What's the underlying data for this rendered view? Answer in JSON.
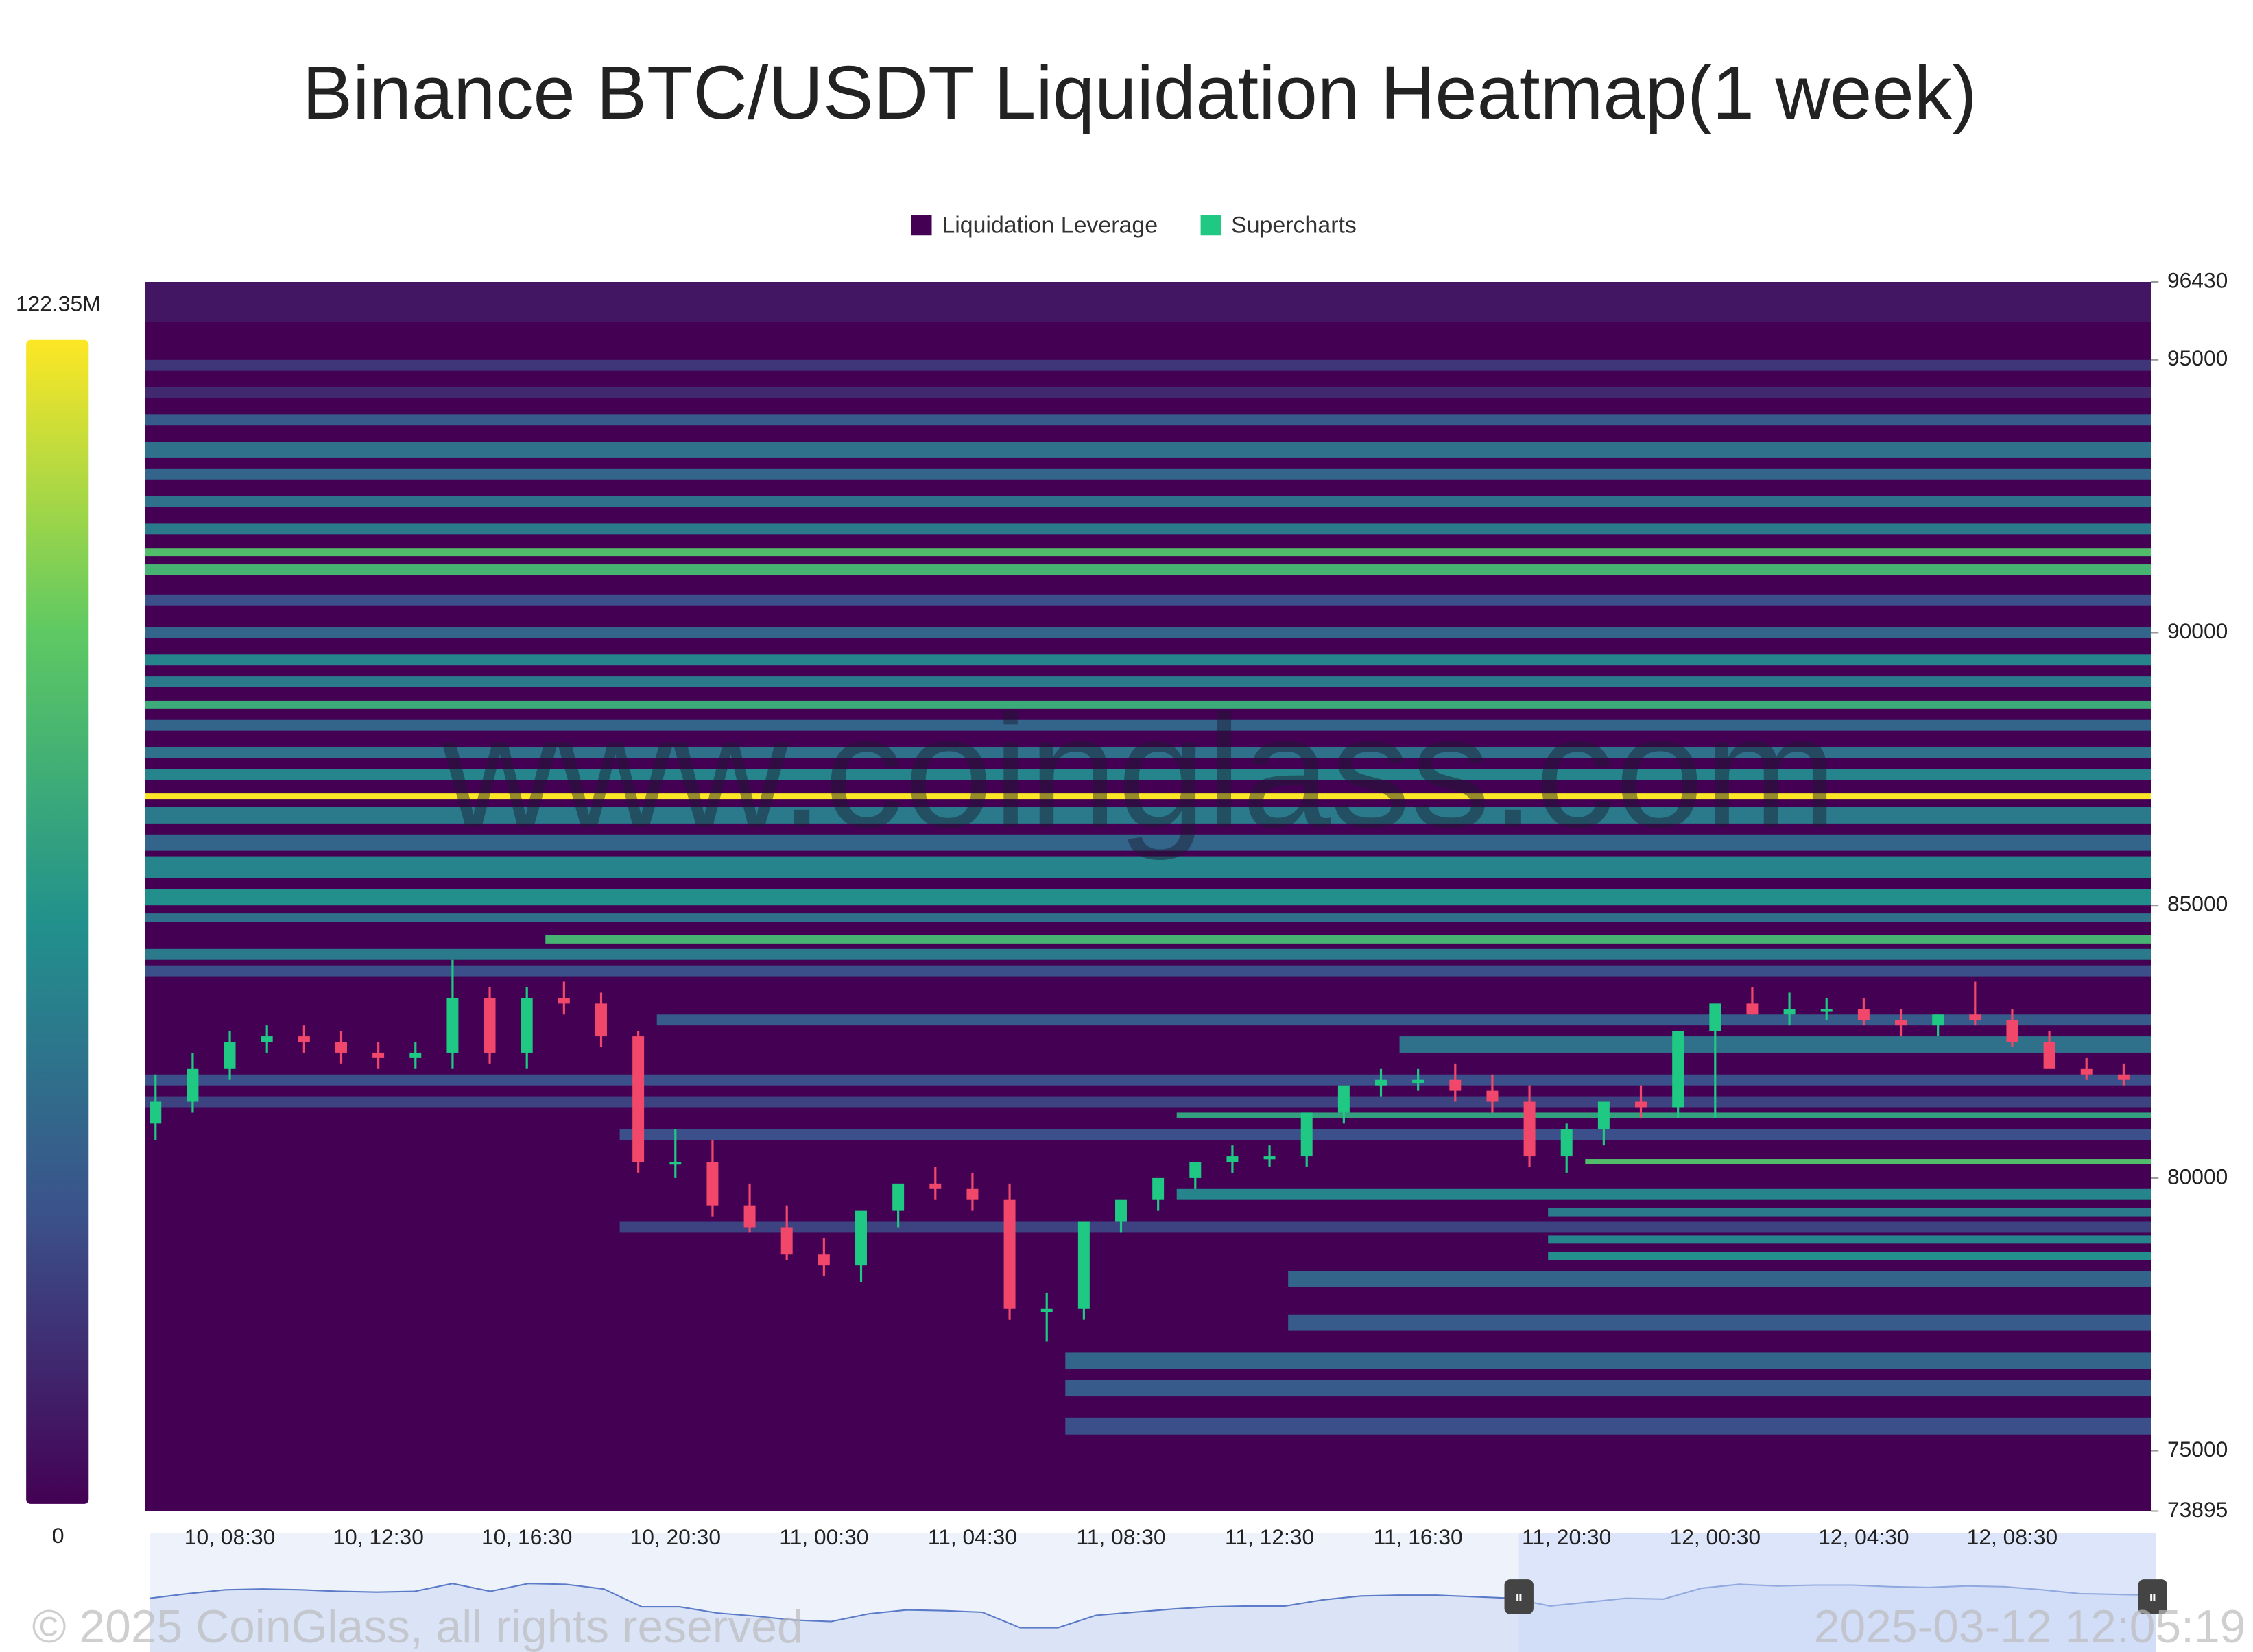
{
  "chart_data": {
    "type": "candlestick",
    "title": "Binance BTC/USDT Liquidation Heatmap(1 week)",
    "watermark": "www.coinglass.com",
    "copyright": "© 2025 CoinGlass, all rights reserved",
    "timestamp": "2025-03-12 12:05:19",
    "categories": [
      null,
      null,
      "10, 08:30",
      null,
      null,
      null,
      "10, 12:30",
      null,
      null,
      null,
      "10, 16:30",
      null,
      null,
      null,
      "10, 20:30",
      null,
      null,
      null,
      "11, 00:30",
      null,
      null,
      null,
      "11, 04:30",
      null,
      null,
      null,
      "11, 08:30",
      null,
      null,
      null,
      "11, 12:30",
      null,
      null,
      null,
      "11, 16:30",
      null,
      null,
      null,
      "11, 20:30",
      null,
      null,
      null,
      "12, 00:30",
      null,
      null,
      null,
      "12, 04:30",
      null,
      null,
      null,
      "12, 08:30",
      null,
      null,
      null
    ],
    "ylim": [
      73895,
      96430
    ],
    "yticks": [
      73895,
      75000,
      80000,
      85000,
      90000,
      95000,
      96430
    ],
    "zlim": [
      0,
      122350000
    ],
    "zticks": [
      0,
      {
        "value": 122350000,
        "label": "122.35M"
      }
    ],
    "heat": {
      "name": "Liquidation Leverage",
      "color": "#440154",
      "rows": [
        {
          "low": 95700,
          "high": 96430,
          "value": 8000000,
          "start": 0
        },
        {
          "low": 94800,
          "high": 95000,
          "value": 20000000,
          "start": 0
        },
        {
          "low": 94300,
          "high": 94500,
          "value": 15000000,
          "start": 0
        },
        {
          "low": 93800,
          "high": 94000,
          "value": 35000000,
          "start": 0
        },
        {
          "low": 93200,
          "high": 93500,
          "value": 45000000,
          "start": 0
        },
        {
          "low": 92800,
          "high": 93000,
          "value": 40000000,
          "start": 0
        },
        {
          "low": 92300,
          "high": 92500,
          "value": 45000000,
          "start": 0
        },
        {
          "low": 91800,
          "high": 92000,
          "value": 50000000,
          "start": 0
        },
        {
          "low": 91400,
          "high": 91550,
          "value": 85000000,
          "start": 0
        },
        {
          "low": 91050,
          "high": 91250,
          "value": 80000000,
          "start": 0
        },
        {
          "low": 90500,
          "high": 90700,
          "value": 30000000,
          "start": 0
        },
        {
          "low": 89900,
          "high": 90100,
          "value": 40000000,
          "start": 0
        },
        {
          "low": 89400,
          "high": 89600,
          "value": 55000000,
          "start": 0
        },
        {
          "low": 89000,
          "high": 89200,
          "value": 50000000,
          "start": 0
        },
        {
          "low": 88600,
          "high": 88750,
          "value": 75000000,
          "start": 0
        },
        {
          "low": 88200,
          "high": 88400,
          "value": 40000000,
          "start": 0
        },
        {
          "low": 87700,
          "high": 87900,
          "value": 45000000,
          "start": 0
        },
        {
          "low": 87300,
          "high": 87500,
          "value": 55000000,
          "start": 0
        },
        {
          "low": 86950,
          "high": 87050,
          "value": 122000000,
          "start": 0
        },
        {
          "low": 86500,
          "high": 86800,
          "value": 50000000,
          "start": 0
        },
        {
          "low": 86000,
          "high": 86300,
          "value": 40000000,
          "start": 0
        },
        {
          "low": 85500,
          "high": 85900,
          "value": 55000000,
          "start": 0
        },
        {
          "low": 85000,
          "high": 85300,
          "value": 60000000,
          "start": 0
        },
        {
          "low": 84700,
          "high": 84850,
          "value": 45000000,
          "start": 0
        },
        {
          "low": 84300,
          "high": 84450,
          "value": 80000000,
          "start": 11
        },
        {
          "low": 84000,
          "high": 84200,
          "value": 50000000,
          "start": 0
        },
        {
          "low": 83700,
          "high": 83900,
          "value": 30000000,
          "start": 0
        },
        {
          "low": 82800,
          "high": 83000,
          "value": 35000000,
          "start": 14
        },
        {
          "low": 82300,
          "high": 82600,
          "value": 45000000,
          "start": 34
        },
        {
          "low": 81700,
          "high": 81900,
          "value": 30000000,
          "start": 0
        },
        {
          "low": 81300,
          "high": 81500,
          "value": 25000000,
          "start": 0
        },
        {
          "low": 81100,
          "high": 81200,
          "value": 70000000,
          "start": 28
        },
        {
          "low": 80700,
          "high": 80900,
          "value": 30000000,
          "start": 13
        },
        {
          "low": 80250,
          "high": 80350,
          "value": 85000000,
          "start": 39
        },
        {
          "low": 79600,
          "high": 79800,
          "value": 55000000,
          "start": 28
        },
        {
          "low": 79300,
          "high": 79450,
          "value": 50000000,
          "start": 38
        },
        {
          "low": 79000,
          "high": 79200,
          "value": 25000000,
          "start": 13
        },
        {
          "low": 78800,
          "high": 78950,
          "value": 55000000,
          "start": 38
        },
        {
          "low": 78500,
          "high": 78650,
          "value": 60000000,
          "start": 38
        },
        {
          "low": 78000,
          "high": 78300,
          "value": 40000000,
          "start": 31
        },
        {
          "low": 77200,
          "high": 77500,
          "value": 35000000,
          "start": 31
        },
        {
          "low": 76500,
          "high": 76800,
          "value": 40000000,
          "start": 25
        },
        {
          "low": 76000,
          "high": 76300,
          "value": 35000000,
          "start": 25
        },
        {
          "low": 75300,
          "high": 75600,
          "value": 30000000,
          "start": 25
        }
      ]
    },
    "candles": {
      "name": "Supercharts",
      "color": "#1fc983",
      "up_color": "#1fc983",
      "down_color": "#f0476a",
      "open": [
        81000,
        81400,
        82000,
        82500,
        82600,
        82500,
        82300,
        82200,
        82300,
        83300,
        82300,
        83300,
        83200,
        82600,
        80300,
        80300,
        79500,
        79100,
        78600,
        78400,
        79400,
        79900,
        79800,
        79600,
        77600,
        77600,
        79200,
        79600,
        80000,
        80300,
        80400,
        80400,
        81200,
        81700,
        81800,
        81800,
        81600,
        81400,
        80400,
        80900,
        81400,
        81300,
        82700,
        83200,
        83000,
        83100,
        83100,
        82900,
        82800,
        83000,
        82900,
        82500,
        82000,
        81900
      ],
      "high": [
        81900,
        82300,
        82700,
        82800,
        82800,
        82700,
        82500,
        82500,
        84000,
        83500,
        83500,
        83600,
        83400,
        82700,
        80900,
        80700,
        79900,
        79500,
        78900,
        78700,
        79700,
        80200,
        80100,
        79900,
        77900,
        78100,
        79500,
        79900,
        80300,
        80600,
        80600,
        80700,
        81500,
        82000,
        82000,
        82100,
        81900,
        81700,
        81000,
        81200,
        81700,
        81600,
        83100,
        83500,
        83400,
        83300,
        83300,
        83100,
        83000,
        83600,
        83100,
        82700,
        82200,
        82100
      ],
      "low": [
        80700,
        81200,
        81800,
        82300,
        82300,
        82100,
        82000,
        82000,
        82000,
        82100,
        82000,
        83000,
        82400,
        80100,
        80000,
        79300,
        79000,
        78500,
        78200,
        78100,
        79100,
        79600,
        79400,
        77400,
        77000,
        77400,
        79000,
        79400,
        79800,
        80100,
        80200,
        80200,
        81000,
        81500,
        81600,
        81400,
        81200,
        80200,
        80100,
        80600,
        81100,
        81100,
        81100,
        83000,
        82800,
        82900,
        82800,
        82600,
        82600,
        82800,
        82400,
        82300,
        81800,
        81700
      ],
      "close": [
        81400,
        82000,
        82500,
        82600,
        82500,
        82300,
        82200,
        82300,
        83300,
        82300,
        83300,
        83200,
        82600,
        80300,
        80300,
        79500,
        79100,
        78600,
        78400,
        79400,
        79900,
        79800,
        79600,
        77600,
        77600,
        79200,
        79600,
        80000,
        80300,
        80400,
        80400,
        81200,
        81700,
        81800,
        81800,
        81600,
        81400,
        80400,
        80900,
        81400,
        81300,
        82700,
        83200,
        83000,
        83100,
        83100,
        82900,
        82800,
        83000,
        82900,
        82500,
        82000,
        81900,
        81800
      ]
    }
  }
}
